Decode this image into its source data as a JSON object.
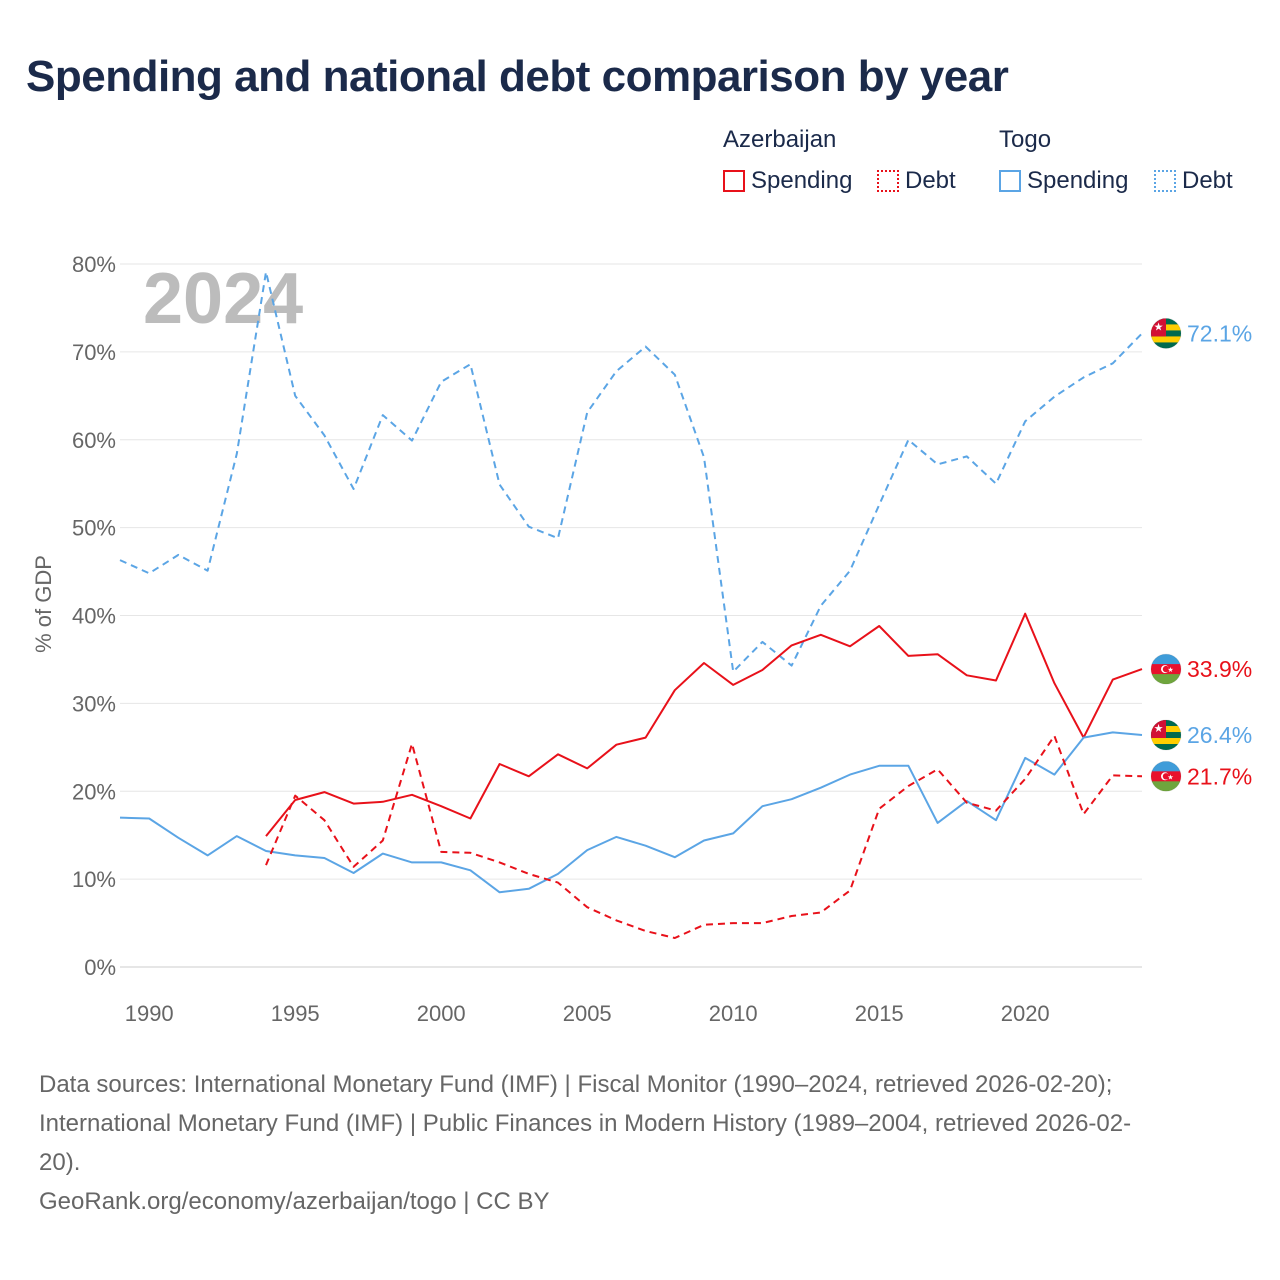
{
  "title": "Spending and national debt comparison by year",
  "legend": {
    "groups": [
      {
        "name": "Azerbaijan",
        "items": [
          "Spending",
          "Debt"
        ]
      },
      {
        "name": "Togo",
        "items": [
          "Spending",
          "Debt"
        ]
      }
    ]
  },
  "colors": {
    "azerbaijan": "#e8111a",
    "togo": "#5ba5e5"
  },
  "footer": {
    "sources_line1": "Data sources: International Monetary Fund (IMF) | Fiscal Monitor (1990–2024, retrieved 2026-02-20);",
    "sources_line2": "International Monetary Fund (IMF) | Public Finances in Modern History (1989–2004, retrieved 2026-02-",
    "sources_line3": "20).",
    "credit": "GeoRank.org/economy/azerbaijan/togo | CC BY"
  },
  "chart_data": {
    "type": "line",
    "title": "Spending and national debt comparison by year",
    "year_label": "2024",
    "ylabel": "% of GDP",
    "xlabel": "",
    "xlim": [
      1989,
      2024
    ],
    "ylim": [
      0,
      80
    ],
    "x_ticks": [
      1990,
      1995,
      2000,
      2005,
      2010,
      2015,
      2020
    ],
    "y_ticks": [
      0,
      10,
      20,
      30,
      40,
      50,
      60,
      70,
      80
    ],
    "y_tick_labels": [
      "0%",
      "10%",
      "20%",
      "30%",
      "40%",
      "50%",
      "60%",
      "70%",
      "80%"
    ],
    "series": [
      {
        "name": "Togo Debt",
        "country": "Togo",
        "metric": "Debt",
        "style": "dashed",
        "color": "#5ba5e5",
        "end_label": "72.1%",
        "flag": "togo",
        "x": [
          1989,
          1990,
          1991,
          1992,
          1993,
          1994,
          1995,
          1996,
          1997,
          1998,
          1999,
          2000,
          2001,
          2002,
          2003,
          2004,
          2005,
          2006,
          2007,
          2008,
          2009,
          2010,
          2011,
          2012,
          2013,
          2014,
          2015,
          2016,
          2017,
          2018,
          2019,
          2020,
          2021,
          2022,
          2023,
          2024
        ],
        "values": [
          46.3,
          44.8,
          46.9,
          45.1,
          58.4,
          79.1,
          65.0,
          60.5,
          54.4,
          62.8,
          59.9,
          66.6,
          68.6,
          54.9,
          50.1,
          48.8,
          63.1,
          67.8,
          70.6,
          67.4,
          58.0,
          33.6,
          37.0,
          34.3,
          41.1,
          45.1,
          52.6,
          60.0,
          57.2,
          58.1,
          55.0,
          62.1,
          64.9,
          67.1,
          68.7,
          72.1
        ]
      },
      {
        "name": "Azerbaijan Spending",
        "country": "Azerbaijan",
        "metric": "Spending",
        "style": "solid",
        "color": "#e8111a",
        "end_label": "33.9%",
        "flag": "azerbaijan",
        "x": [
          1994,
          1995,
          1996,
          1997,
          1998,
          1999,
          2000,
          2001,
          2002,
          2003,
          2004,
          2005,
          2006,
          2007,
          2008,
          2009,
          2010,
          2011,
          2012,
          2013,
          2014,
          2015,
          2016,
          2017,
          2018,
          2019,
          2020,
          2021,
          2022,
          2023,
          2024
        ],
        "values": [
          14.9,
          19.0,
          19.9,
          18.6,
          18.8,
          19.6,
          18.3,
          16.9,
          23.1,
          21.7,
          24.2,
          22.6,
          25.3,
          26.1,
          31.5,
          34.6,
          32.1,
          33.8,
          36.6,
          37.8,
          36.5,
          38.8,
          35.4,
          35.6,
          33.2,
          32.6,
          40.2,
          32.3,
          26.1,
          32.7,
          33.9
        ]
      },
      {
        "name": "Togo Spending",
        "country": "Togo",
        "metric": "Spending",
        "style": "solid",
        "color": "#5ba5e5",
        "end_label": "26.4%",
        "flag": "togo",
        "x": [
          1989,
          1990,
          1991,
          1992,
          1993,
          1994,
          1995,
          1996,
          1997,
          1998,
          1999,
          2000,
          2001,
          2002,
          2003,
          2004,
          2005,
          2006,
          2007,
          2008,
          2009,
          2010,
          2011,
          2012,
          2013,
          2014,
          2015,
          2016,
          2017,
          2018,
          2019,
          2020,
          2021,
          2022,
          2023,
          2024
        ],
        "values": [
          17.0,
          16.9,
          14.7,
          12.7,
          14.9,
          13.2,
          12.7,
          12.4,
          10.7,
          12.9,
          11.9,
          11.9,
          11.0,
          8.5,
          8.9,
          10.6,
          13.3,
          14.8,
          13.8,
          12.5,
          14.4,
          15.2,
          18.3,
          19.1,
          20.4,
          21.9,
          22.9,
          22.9,
          16.4,
          18.9,
          16.7,
          23.8,
          21.9,
          26.1,
          26.7,
          26.4
        ]
      },
      {
        "name": "Azerbaijan Debt",
        "country": "Azerbaijan",
        "metric": "Debt",
        "style": "dashed",
        "color": "#e8111a",
        "end_label": "21.7%",
        "flag": "azerbaijan",
        "x": [
          1994,
          1995,
          1996,
          1997,
          1998,
          1999,
          2000,
          2001,
          2002,
          2003,
          2004,
          2005,
          2006,
          2007,
          2008,
          2009,
          2010,
          2011,
          2012,
          2013,
          2014,
          2015,
          2016,
          2017,
          2018,
          2019,
          2020,
          2021,
          2022,
          2023,
          2024
        ],
        "values": [
          11.6,
          19.5,
          16.7,
          11.4,
          14.4,
          25.4,
          13.1,
          13.0,
          11.9,
          10.6,
          9.6,
          6.8,
          5.3,
          4.1,
          3.3,
          4.8,
          5.0,
          5.0,
          5.8,
          6.2,
          8.7,
          18.0,
          20.6,
          22.5,
          18.7,
          17.8,
          21.4,
          26.3,
          17.4,
          21.8,
          21.7
        ]
      }
    ]
  }
}
